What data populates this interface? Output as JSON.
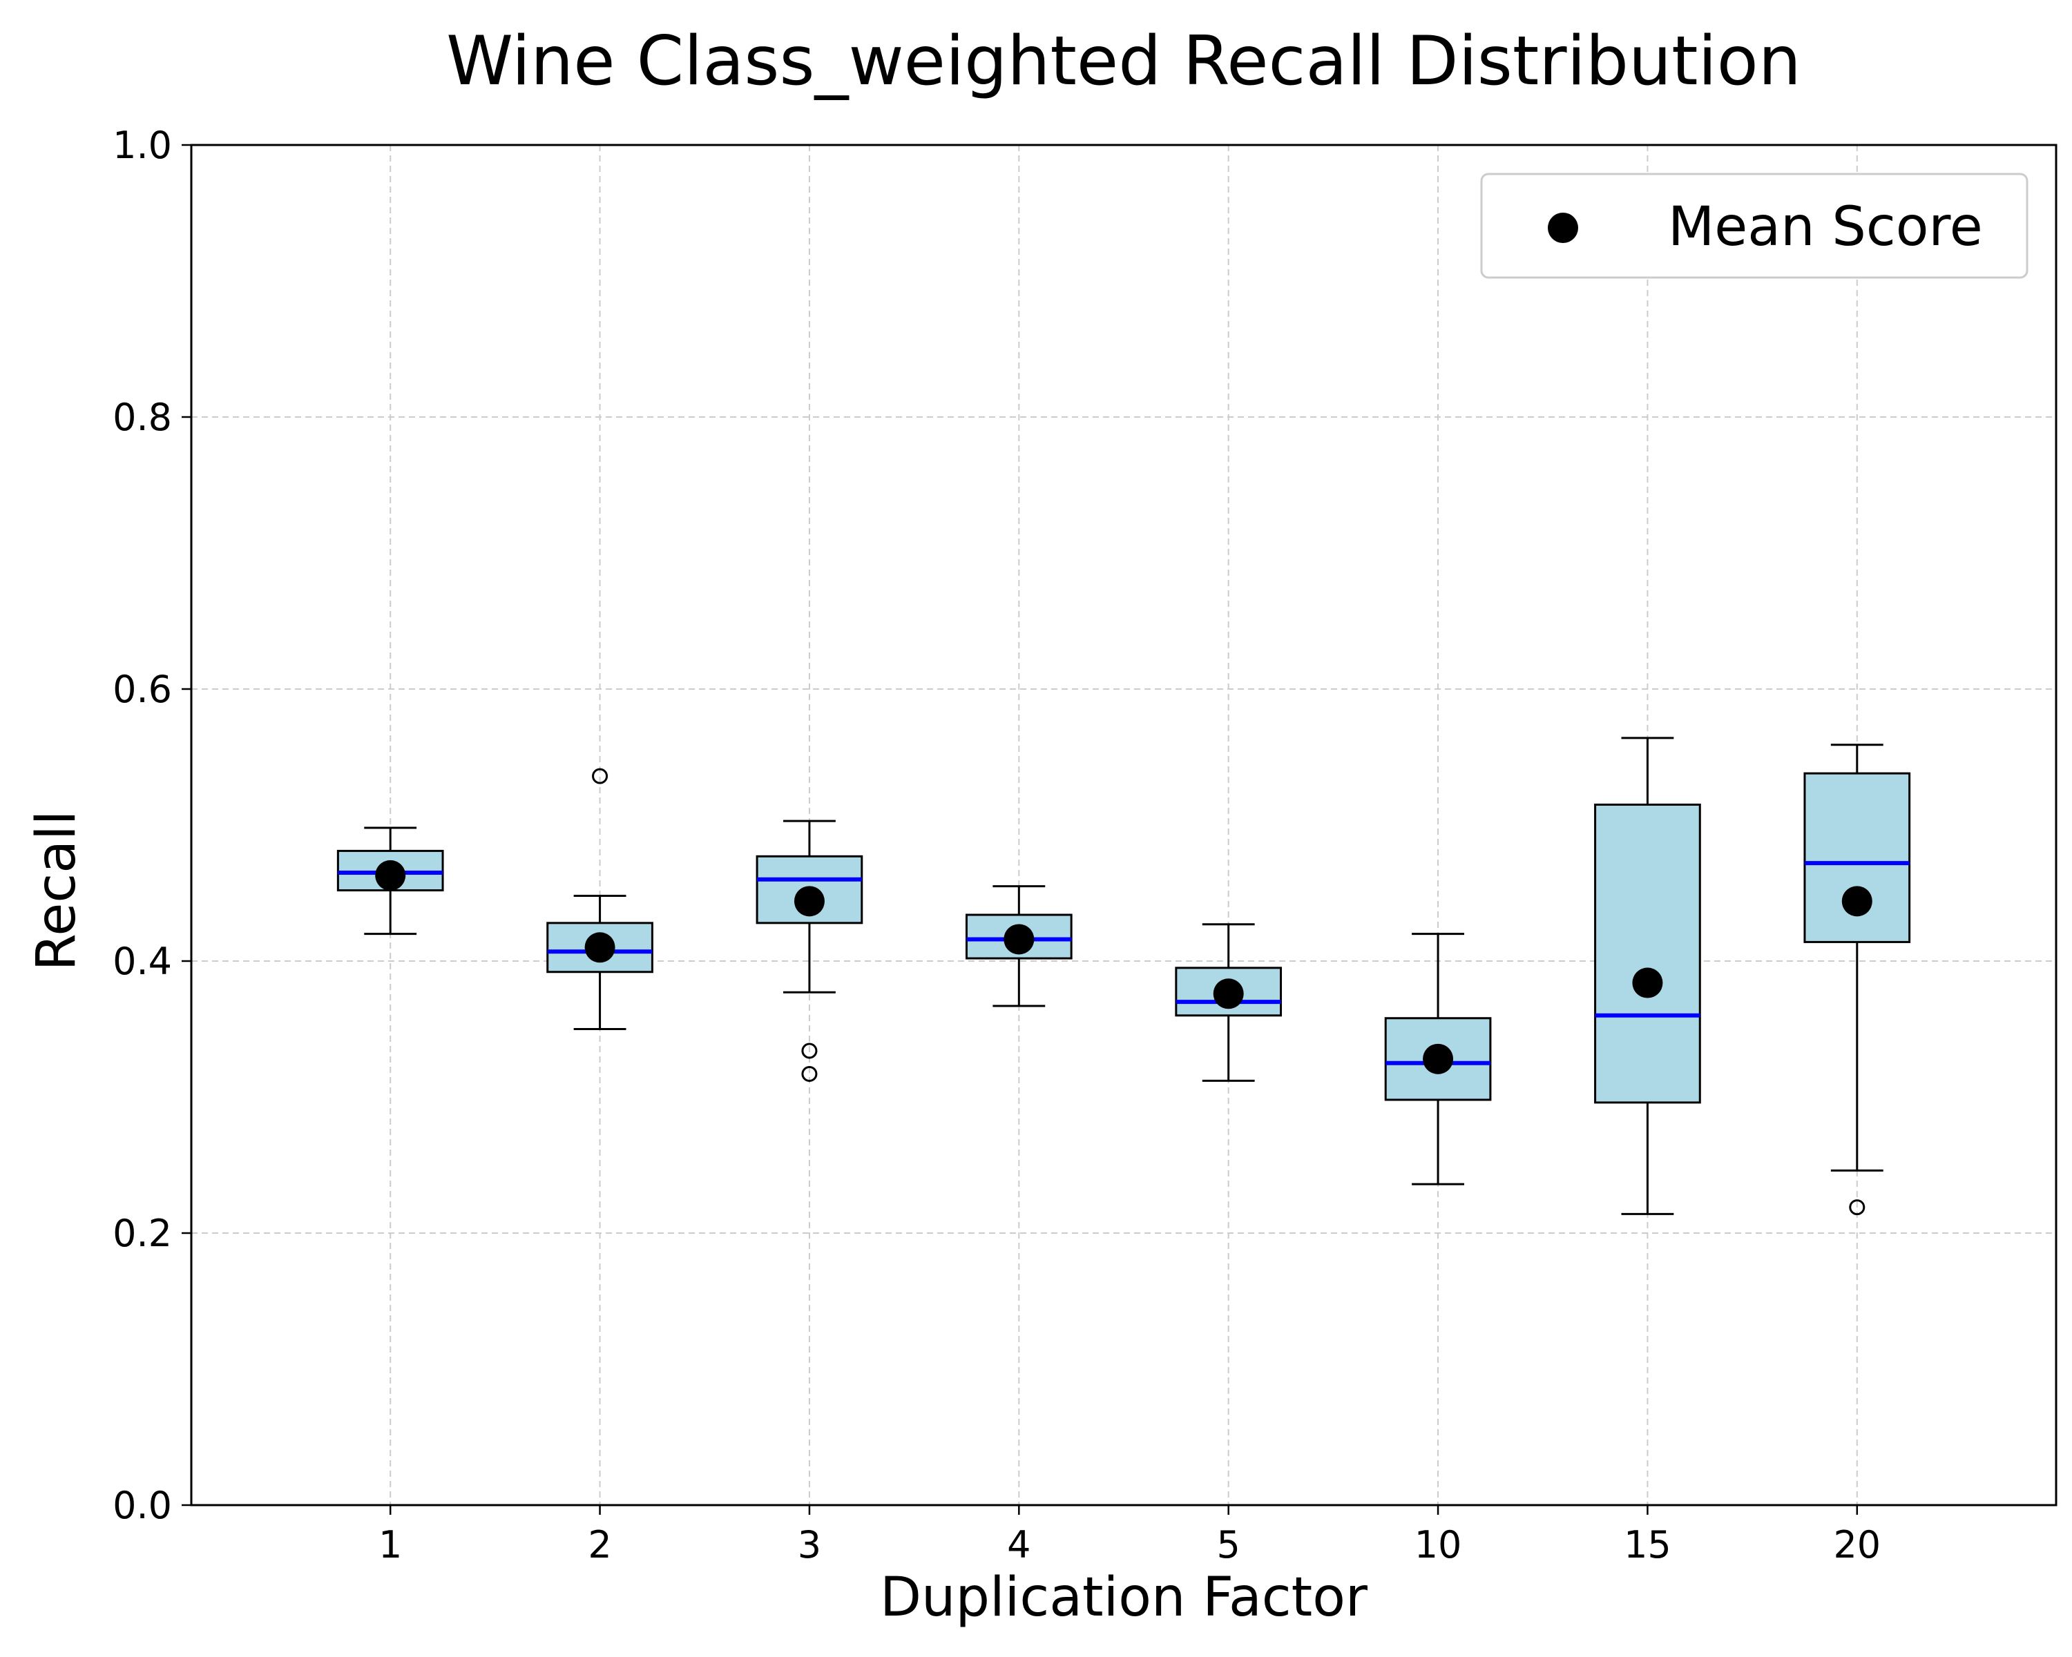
{
  "chart_data": {
    "type": "box",
    "title": "Wine Class_weighted Recall Distribution",
    "xlabel": "Duplication Factor",
    "ylabel": "Recall",
    "ylim": [
      0.0,
      1.0
    ],
    "yticks": [
      "0.0",
      "0.2",
      "0.4",
      "0.6",
      "0.8",
      "1.0"
    ],
    "categories": [
      "1",
      "2",
      "3",
      "4",
      "5",
      "10",
      "15",
      "20"
    ],
    "grid": true,
    "legend": {
      "position": "top-right",
      "entries": [
        "Mean Score"
      ]
    },
    "boxes": [
      {
        "category": "1",
        "whisker_low": 0.42,
        "q1": 0.452,
        "median": 0.465,
        "q3": 0.481,
        "whisker_high": 0.498,
        "mean": 0.463,
        "outliers": []
      },
      {
        "category": "2",
        "whisker_low": 0.35,
        "q1": 0.392,
        "median": 0.407,
        "q3": 0.428,
        "whisker_high": 0.448,
        "mean": 0.41,
        "outliers": [
          0.536
        ]
      },
      {
        "category": "3",
        "whisker_low": 0.377,
        "q1": 0.428,
        "median": 0.46,
        "q3": 0.477,
        "whisker_high": 0.503,
        "mean": 0.444,
        "outliers": [
          0.334,
          0.317
        ]
      },
      {
        "category": "4",
        "whisker_low": 0.367,
        "q1": 0.402,
        "median": 0.416,
        "q3": 0.434,
        "whisker_high": 0.455,
        "mean": 0.416,
        "outliers": []
      },
      {
        "category": "5",
        "whisker_low": 0.312,
        "q1": 0.36,
        "median": 0.37,
        "q3": 0.395,
        "whisker_high": 0.427,
        "mean": 0.376,
        "outliers": []
      },
      {
        "category": "10",
        "whisker_low": 0.236,
        "q1": 0.298,
        "median": 0.325,
        "q3": 0.358,
        "whisker_high": 0.42,
        "mean": 0.328,
        "outliers": []
      },
      {
        "category": "15",
        "whisker_low": 0.214,
        "q1": 0.296,
        "median": 0.36,
        "q3": 0.515,
        "whisker_high": 0.564,
        "mean": 0.384,
        "outliers": []
      },
      {
        "category": "20",
        "whisker_low": 0.246,
        "q1": 0.414,
        "median": 0.472,
        "q3": 0.538,
        "whisker_high": 0.559,
        "mean": 0.444,
        "outliers": [
          0.219
        ]
      }
    ],
    "colors": {
      "box_fill": "#add8e6",
      "box_edge": "#000000",
      "median": "#0000ff",
      "mean": "#000000",
      "grid": "#cccccc"
    }
  }
}
